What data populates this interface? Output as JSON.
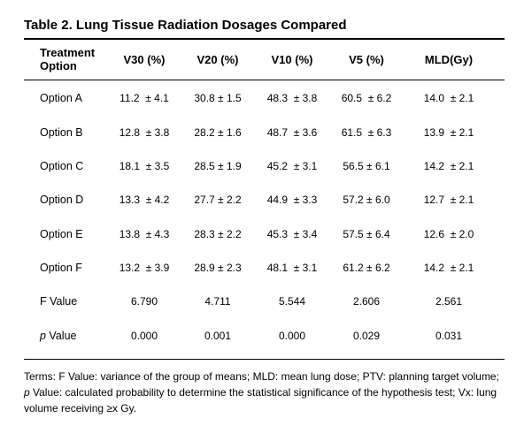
{
  "title": "Table 2. Lung Tissue Radiation Dosages Compared",
  "columns": [
    "Treatment Option",
    "V30 (%)",
    "V20 (%)",
    "V10 (%)",
    "V5 (%)",
    "MLD(Gy)"
  ],
  "rows": [
    {
      "label": "Option A",
      "values": [
        "11.2  ± 4.1",
        "30.8 ± 1.5",
        "48.3  ± 3.8",
        "60.5  ± 6.2",
        "14.0  ± 2.1"
      ]
    },
    {
      "label": "Option B",
      "values": [
        "12.8  ± 3.8",
        "28.2 ± 1.6",
        "48.7  ± 3.6",
        "61.5  ± 6.3",
        "13.9  ± 2.1"
      ]
    },
    {
      "label": "Option C",
      "values": [
        "18.1  ± 3.5",
        "28.5 ± 1.9",
        "45.2  ± 3.1",
        "56.5 ± 6.1",
        "14.2  ± 2.1"
      ]
    },
    {
      "label": "Option D",
      "values": [
        "13.3  ± 4.2",
        "27.7 ± 2.2",
        "44.9  ± 3.3",
        "57.2 ± 6.0",
        "12.7  ± 2.1"
      ]
    },
    {
      "label": "Option E",
      "values": [
        "13.8  ± 4.3",
        "28.3 ± 2.2",
        "45.3  ± 3.4",
        "57.5 ± 6.4",
        "12.6  ± 2.0"
      ]
    },
    {
      "label": "Option F",
      "values": [
        "13.2  ± 3.9",
        "28.9 ± 2.3",
        "48.1  ± 3.1",
        "61.2 ± 6.2",
        "14.2  ± 2.1"
      ]
    },
    {
      "label": "F Value",
      "values": [
        "6.790",
        "4.711",
        "5.544",
        "2.606",
        "2.561"
      ]
    },
    {
      "label_italic": "p",
      "label": " Value",
      "values": [
        "0.000",
        "0.001",
        "0.000",
        "0.029",
        "0.031"
      ]
    }
  ],
  "footnote": {
    "part1": "Terms: F Value:  variance  of the group of means; MLD: mean  lung dose; PTV:  planning target volume; ",
    "italic": "p",
    "part2": " Value:  calculated probability to determine the statistical significance of the hypothesis test; Vx: lung volume receiving ≥x Gy."
  }
}
